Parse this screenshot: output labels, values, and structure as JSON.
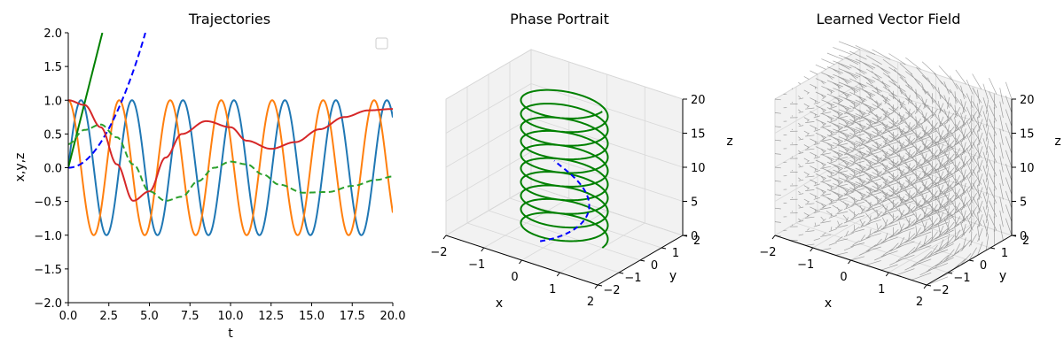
{
  "chart_data": [
    {
      "type": "line",
      "title": "Trajectories",
      "xlabel": "t",
      "ylabel": "x,y,z",
      "xlim": [
        0,
        20
      ],
      "ylim": [
        -2,
        2
      ],
      "xticks": [
        "0.0",
        "2.5",
        "5.0",
        "7.5",
        "10.0",
        "12.5",
        "15.0",
        "17.5",
        "20.0"
      ],
      "yticks": [
        "2.0",
        "1.5",
        "1.0",
        "0.5",
        "0.0",
        "−0.5",
        "−1.0",
        "−1.5",
        "−2.0"
      ],
      "grid": false,
      "legend": "top-right (empty)",
      "series": [
        {
          "color": "#1f77b4",
          "style": "solid",
          "model": "sin(2t)",
          "x_range": [
            0,
            20
          ]
        },
        {
          "color": "#ff7f0e",
          "style": "solid",
          "model": "cos(2t)",
          "x_range": [
            0,
            20
          ]
        },
        {
          "color": "#008000",
          "style": "solid",
          "model": "linear",
          "x": [
            0,
            2.1
          ],
          "y": [
            0,
            2.0
          ]
        },
        {
          "color": "#0000ff",
          "style": "dashed",
          "model": "quadratic",
          "x": [
            0,
            2.5,
            4.75
          ],
          "y": [
            0,
            0.65,
            2.0
          ]
        },
        {
          "color": "#d62728",
          "style": "solid",
          "model": "damped",
          "points": [
            [
              0,
              1.0
            ],
            [
              1,
              0.93
            ],
            [
              2,
              0.6
            ],
            [
              3,
              0.05
            ],
            [
              4,
              -0.49
            ],
            [
              5,
              -0.35
            ],
            [
              6,
              0.15
            ],
            [
              7,
              0.5
            ],
            [
              8.5,
              0.69
            ],
            [
              10,
              0.6
            ],
            [
              11,
              0.4
            ],
            [
              12.5,
              0.28
            ],
            [
              14,
              0.38
            ],
            [
              15.5,
              0.57
            ],
            [
              17,
              0.75
            ],
            [
              18.5,
              0.85
            ],
            [
              20,
              0.87
            ]
          ]
        },
        {
          "color": "#2ca02c",
          "style": "dashed",
          "model": "damped",
          "points": [
            [
              0,
              0.35
            ],
            [
              1,
              0.56
            ],
            [
              2,
              0.64
            ],
            [
              3,
              0.45
            ],
            [
              4,
              0.05
            ],
            [
              5,
              -0.35
            ],
            [
              6,
              -0.49
            ],
            [
              7,
              -0.43
            ],
            [
              8,
              -0.2
            ],
            [
              9,
              0.0
            ],
            [
              10,
              0.09
            ],
            [
              11,
              0.05
            ],
            [
              12,
              -0.1
            ],
            [
              13,
              -0.25
            ],
            [
              14.5,
              -0.37
            ],
            [
              16,
              -0.36
            ],
            [
              17.5,
              -0.27
            ],
            [
              19,
              -0.18
            ],
            [
              20,
              -0.13
            ]
          ]
        }
      ]
    },
    {
      "type": "line3d",
      "title": "Phase Portrait",
      "xlabel": "x",
      "ylabel": "y",
      "zlabel": "z",
      "xlim": [
        -2,
        2
      ],
      "ylim": [
        -2,
        2
      ],
      "zlim": [
        0,
        20
      ],
      "xticks": [
        "−2",
        "−1",
        "0",
        "1",
        "2"
      ],
      "yticks": [
        "−2",
        "−1",
        "0",
        "1",
        "2"
      ],
      "zticks": [
        "0",
        "5",
        "10",
        "15",
        "20"
      ],
      "series": [
        {
          "color": "#008000",
          "style": "solid",
          "model": "helix",
          "radius": 1,
          "z_range": [
            0,
            20
          ],
          "turns": 10
        },
        {
          "color": "#0000ff",
          "style": "dashed",
          "model": "spiral",
          "z_range": [
            0,
            10
          ]
        }
      ]
    },
    {
      "type": "quiver3d",
      "title": "Learned Vector Field",
      "xlabel": "x",
      "ylabel": "y",
      "zlabel": "z",
      "xlim": [
        -2,
        2
      ],
      "ylim": [
        -2,
        2
      ],
      "zlim": [
        0,
        20
      ],
      "xticks": [
        "−2",
        "−1",
        "0",
        "1",
        "2"
      ],
      "yticks": [
        "−2",
        "−1",
        "0",
        "1",
        "2"
      ],
      "zticks": [
        "0",
        "5",
        "10",
        "15",
        "20"
      ],
      "color": "#000000"
    }
  ]
}
